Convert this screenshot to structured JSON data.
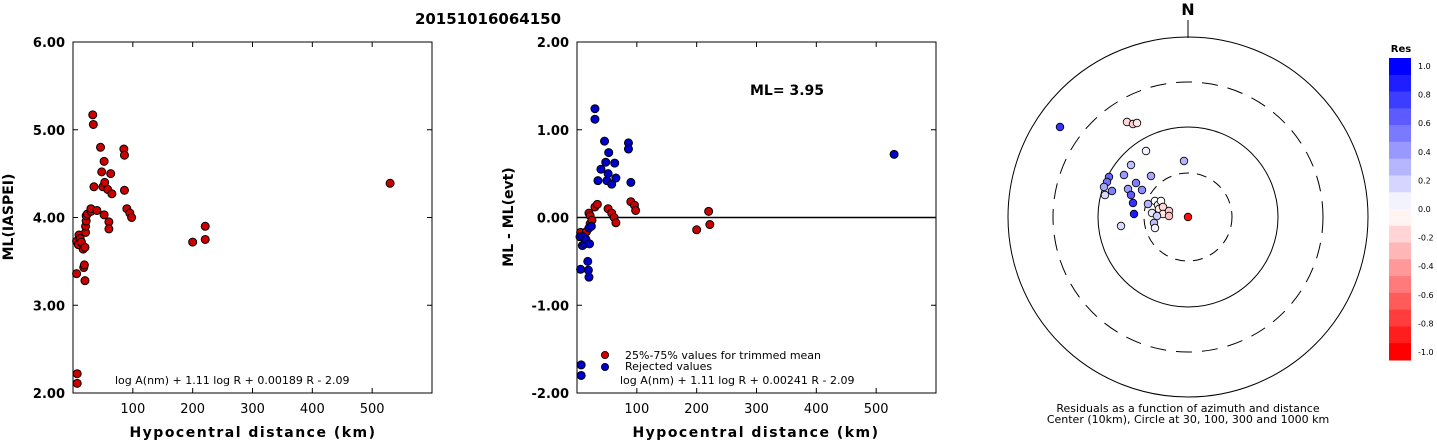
{
  "title": "20151016064150",
  "chart_data": [
    {
      "type": "scatter",
      "ylabel": "ML(IASPEI)",
      "xlabel": "Hypocentral distance (km)",
      "xlim": [
        0,
        600
      ],
      "ylim": [
        2.0,
        6.0
      ],
      "xticks": [
        "100",
        "200",
        "300",
        "400",
        "500"
      ],
      "yticks": [
        "2.00",
        "3.00",
        "4.00",
        "5.00",
        "6.00"
      ],
      "formula": "log A(nm) + 1.11 log R + 0.00189 R - 2.09",
      "grid": false,
      "series": [
        {
          "color": "#cc0000",
          "points": [
            [
              6,
              3.36
            ],
            [
              6,
              3.73
            ],
            [
              7,
              2.22
            ],
            [
              7,
              2.11
            ],
            [
              9,
              3.69
            ],
            [
              10,
              3.8
            ],
            [
              12,
              3.76
            ],
            [
              14,
              3.72
            ],
            [
              17,
              3.64
            ],
            [
              18,
              3.43
            ],
            [
              19,
              3.46
            ],
            [
              20,
              3.28
            ],
            [
              20,
              3.66
            ],
            [
              21,
              3.83
            ],
            [
              21,
              3.9
            ],
            [
              22,
              3.96
            ],
            [
              22,
              4.02
            ],
            [
              24,
              4.04
            ],
            [
              30,
              4.07
            ],
            [
              30,
              4.1
            ],
            [
              33,
              5.17
            ],
            [
              34,
              5.06
            ],
            [
              35,
              4.35
            ],
            [
              40,
              4.08
            ],
            [
              46,
              4.8
            ],
            [
              48,
              4.52
            ],
            [
              50,
              4.35
            ],
            [
              52,
              4.03
            ],
            [
              52,
              4.64
            ],
            [
              53,
              4.4
            ],
            [
              58,
              4.32
            ],
            [
              60,
              3.95
            ],
            [
              60,
              3.87
            ],
            [
              63,
              4.5
            ],
            [
              65,
              4.27
            ],
            [
              85,
              4.78
            ],
            [
              86,
              4.71
            ],
            [
              86,
              4.31
            ],
            [
              90,
              4.1
            ],
            [
              95,
              4.05
            ],
            [
              98,
              4.0
            ],
            [
              200,
              3.72
            ],
            [
              221,
              3.9
            ],
            [
              221,
              3.75
            ],
            [
              530,
              4.39
            ]
          ]
        }
      ]
    },
    {
      "type": "scatter",
      "ylabel": "ML - ML(evt)",
      "xlabel": "Hypocentral distance (km)",
      "xlim": [
        0,
        600
      ],
      "ylim": [
        -2.0,
        2.0
      ],
      "xticks": [
        "100",
        "200",
        "300",
        "400",
        "500"
      ],
      "yticks": [
        "-2.00",
        "-1.00",
        "0.00",
        "1.00",
        "2.00"
      ],
      "annotation": "ML= 3.95",
      "formula": "log A(nm) + 1.11 log R + 0.00241 R - 2.09",
      "reference_line": 0.0,
      "legend": [
        {
          "label": "25%-75% values for trimmed mean",
          "color": "#cc0000"
        },
        {
          "label": "Rejected values",
          "color": "#0000cc"
        }
      ],
      "series": [
        {
          "name": "25%-75% values for trimmed mean",
          "color": "#cc0000",
          "points": [
            [
              6,
              -0.17
            ],
            [
              12,
              -0.21
            ],
            [
              16,
              -0.16
            ],
            [
              20,
              0.05
            ],
            [
              22,
              -0.07
            ],
            [
              22,
              0.02
            ],
            [
              25,
              -0.03
            ],
            [
              30,
              0.12
            ],
            [
              34,
              0.15
            ],
            [
              52,
              0.1
            ],
            [
              58,
              0.05
            ],
            [
              62,
              0.0
            ],
            [
              65,
              -0.06
            ],
            [
              90,
              0.18
            ],
            [
              96,
              0.14
            ],
            [
              98,
              0.08
            ],
            [
              200,
              -0.14
            ],
            [
              220,
              0.07
            ],
            [
              222,
              -0.08
            ]
          ]
        },
        {
          "name": "Rejected values",
          "color": "#0000cc",
          "points": [
            [
              5,
              -0.22
            ],
            [
              6,
              -0.59
            ],
            [
              7,
              -1.68
            ],
            [
              7,
              -1.8
            ],
            [
              9,
              -0.32
            ],
            [
              10,
              -0.22
            ],
            [
              13,
              -0.3
            ],
            [
              15,
              -0.25
            ],
            [
              18,
              -0.5
            ],
            [
              19,
              -0.6
            ],
            [
              20,
              -0.68
            ],
            [
              20,
              -0.12
            ],
            [
              21,
              -0.3
            ],
            [
              24,
              -0.1
            ],
            [
              30,
              1.24
            ],
            [
              30,
              1.12
            ],
            [
              35,
              0.42
            ],
            [
              40,
              0.55
            ],
            [
              46,
              0.87
            ],
            [
              48,
              0.63
            ],
            [
              50,
              0.42
            ],
            [
              52,
              0.5
            ],
            [
              53,
              0.74
            ],
            [
              58,
              0.38
            ],
            [
              63,
              0.62
            ],
            [
              65,
              0.45
            ],
            [
              86,
              0.85
            ],
            [
              86,
              0.78
            ],
            [
              90,
              0.4
            ],
            [
              530,
              0.72
            ]
          ]
        }
      ]
    },
    {
      "type": "scatter",
      "kind": "polar residual map",
      "north_label": "N",
      "caption_line1": "Residuals as a function of azimuth and distance",
      "caption_line2": "Center (10km), Circle at 30, 100, 300 and 1000 km",
      "colorbar_title": "Res",
      "colorbar_ticks": [
        "1.0",
        "0.8",
        "0.6",
        "0.4",
        "0.2",
        "0.0",
        "-0.2",
        "-0.4",
        "-0.6",
        "-0.8",
        "-1.0"
      ],
      "colorbar_colors_top_to_bottom": [
        "#0000ff",
        "#1e1eff",
        "#3d3dff",
        "#5b5bff",
        "#7a7aff",
        "#9898ff",
        "#b6b6ff",
        "#d5d5ff",
        "#f3f3ff",
        "#fff3f3",
        "#ffd5d5",
        "#ffb6b6",
        "#ff9898",
        "#ff7a7a",
        "#ff5b5b",
        "#ff3d3d",
        "#ff1e1e",
        "#ff0000"
      ],
      "circles": [
        {
          "label": "30",
          "style": "dashed"
        },
        {
          "label": "100",
          "style": "solid"
        },
        {
          "label": "300",
          "style": "dashed"
        },
        {
          "label": "1000",
          "style": "solid"
        }
      ],
      "stations": [
        {
          "dx": 0,
          "dy": 0,
          "res": -0.95
        },
        {
          "dx": -128,
          "dy": -90,
          "res": 0.8
        },
        {
          "dx": -61,
          "dy": -95,
          "res": -0.15
        },
        {
          "dx": -55,
          "dy": -93,
          "res": -0.2
        },
        {
          "dx": -51,
          "dy": -94,
          "res": -0.1
        },
        {
          "dx": -42,
          "dy": -66,
          "res": 0.05
        },
        {
          "dx": -4,
          "dy": -56,
          "res": 0.3
        },
        {
          "dx": -57,
          "dy": -52,
          "res": 0.25
        },
        {
          "dx": -64,
          "dy": -42,
          "res": 0.4
        },
        {
          "dx": -37,
          "dy": -41,
          "res": 0.35
        },
        {
          "dx": -52,
          "dy": -34,
          "res": 0.5
        },
        {
          "dx": -79,
          "dy": -40,
          "res": 0.6
        },
        {
          "dx": -81,
          "dy": -35,
          "res": 0.55
        },
        {
          "dx": -84,
          "dy": -30,
          "res": 0.35
        },
        {
          "dx": -60,
          "dy": -28,
          "res": 0.4
        },
        {
          "dx": -57,
          "dy": -22,
          "res": 0.65
        },
        {
          "dx": -46,
          "dy": -27,
          "res": 0.45
        },
        {
          "dx": -83,
          "dy": -22,
          "res": 0.15
        },
        {
          "dx": -76,
          "dy": -26,
          "res": 0.5
        },
        {
          "dx": -55,
          "dy": -14,
          "res": 0.8
        },
        {
          "dx": -40,
          "dy": -13,
          "res": 0.3
        },
        {
          "dx": -33,
          "dy": -16,
          "res": 0.0
        },
        {
          "dx": -30,
          "dy": -12,
          "res": 0.05
        },
        {
          "dx": -27,
          "dy": -16,
          "res": 0.0
        },
        {
          "dx": -29,
          "dy": -8,
          "res": -0.1
        },
        {
          "dx": -25,
          "dy": -10,
          "res": -0.15
        },
        {
          "dx": -25,
          "dy": -3,
          "res": -0.1
        },
        {
          "dx": -19,
          "dy": -6,
          "res": -0.2
        },
        {
          "dx": -36,
          "dy": -4,
          "res": 0.1
        },
        {
          "dx": -31,
          "dy": -1,
          "res": 0.2
        },
        {
          "dx": -34,
          "dy": 6,
          "res": 0.25
        },
        {
          "dx": -19,
          "dy": -1,
          "res": -0.25
        },
        {
          "dx": -54,
          "dy": -3,
          "res": 0.9
        },
        {
          "dx": -67,
          "dy": 9,
          "res": 0.15
        },
        {
          "dx": -33,
          "dy": 11,
          "res": 0.05
        }
      ]
    }
  ]
}
